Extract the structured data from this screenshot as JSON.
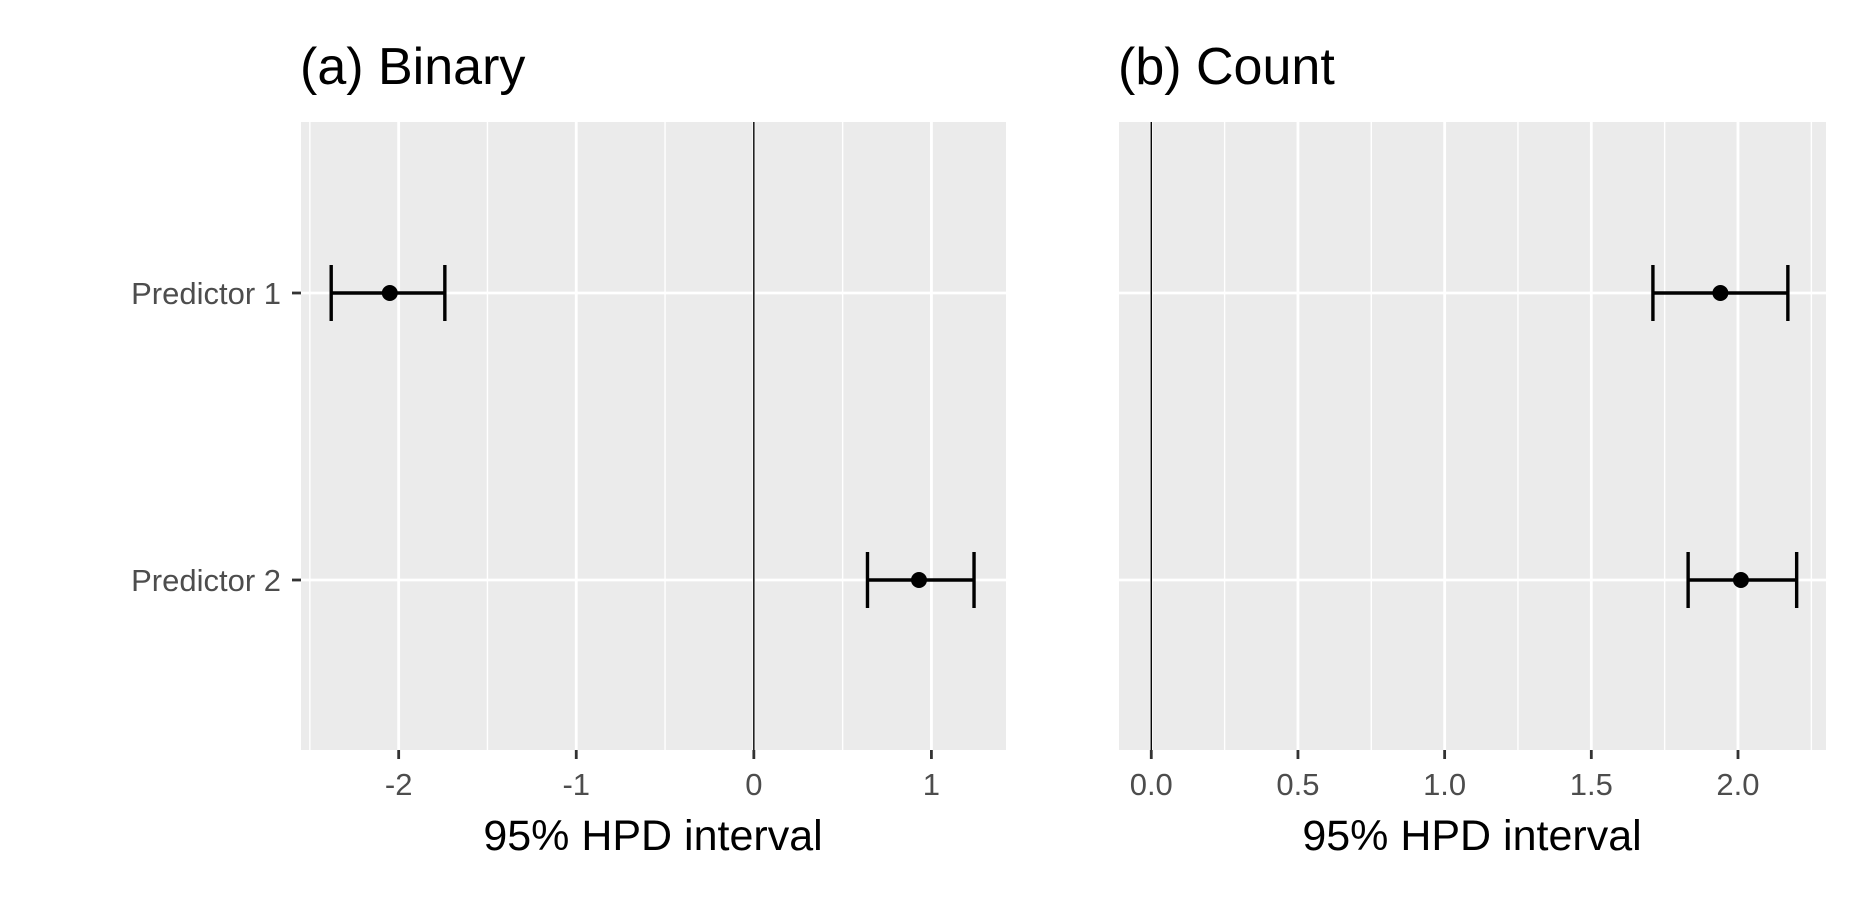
{
  "chart_data": [
    {
      "type": "errorbar",
      "title": "(a) Binary",
      "xlabel": "95% HPD interval",
      "ylabel": "",
      "categories": [
        "Predictor 1",
        "Predictor 2"
      ],
      "estimates": [
        -2.05,
        0.93
      ],
      "lower": [
        -2.38,
        0.64
      ],
      "upper": [
        -1.74,
        1.24
      ],
      "xlim": [
        -2.55,
        1.42
      ],
      "major_ticks": [
        -2,
        -1,
        0,
        1
      ],
      "tick_labels": [
        "-2",
        "-1",
        "0",
        "1"
      ],
      "minor_ticks": [
        -2.5,
        -1.5,
        -0.5,
        0.5
      ],
      "reference_line": 0,
      "grid": true,
      "background": "#ebebeb",
      "grid_color": "#ffffff",
      "mark_color": "#000000"
    },
    {
      "type": "errorbar",
      "title": "(b) Count",
      "xlabel": "95% HPD interval",
      "ylabel": "",
      "categories": [
        "Predictor 1",
        "Predictor 2"
      ],
      "estimates": [
        1.94,
        2.01
      ],
      "lower": [
        1.71,
        1.83
      ],
      "upper": [
        2.17,
        2.2
      ],
      "xlim": [
        -0.11,
        2.3
      ],
      "major_ticks": [
        0,
        0.5,
        1,
        1.5,
        2
      ],
      "tick_labels": [
        "0.0",
        "0.5",
        "1.0",
        "1.5",
        "2.0"
      ],
      "minor_ticks": [
        0.25,
        0.75,
        1.25,
        1.75,
        2.25
      ],
      "reference_line": 0,
      "grid": true,
      "background": "#ebebeb",
      "grid_color": "#ffffff",
      "mark_color": "#000000"
    }
  ]
}
